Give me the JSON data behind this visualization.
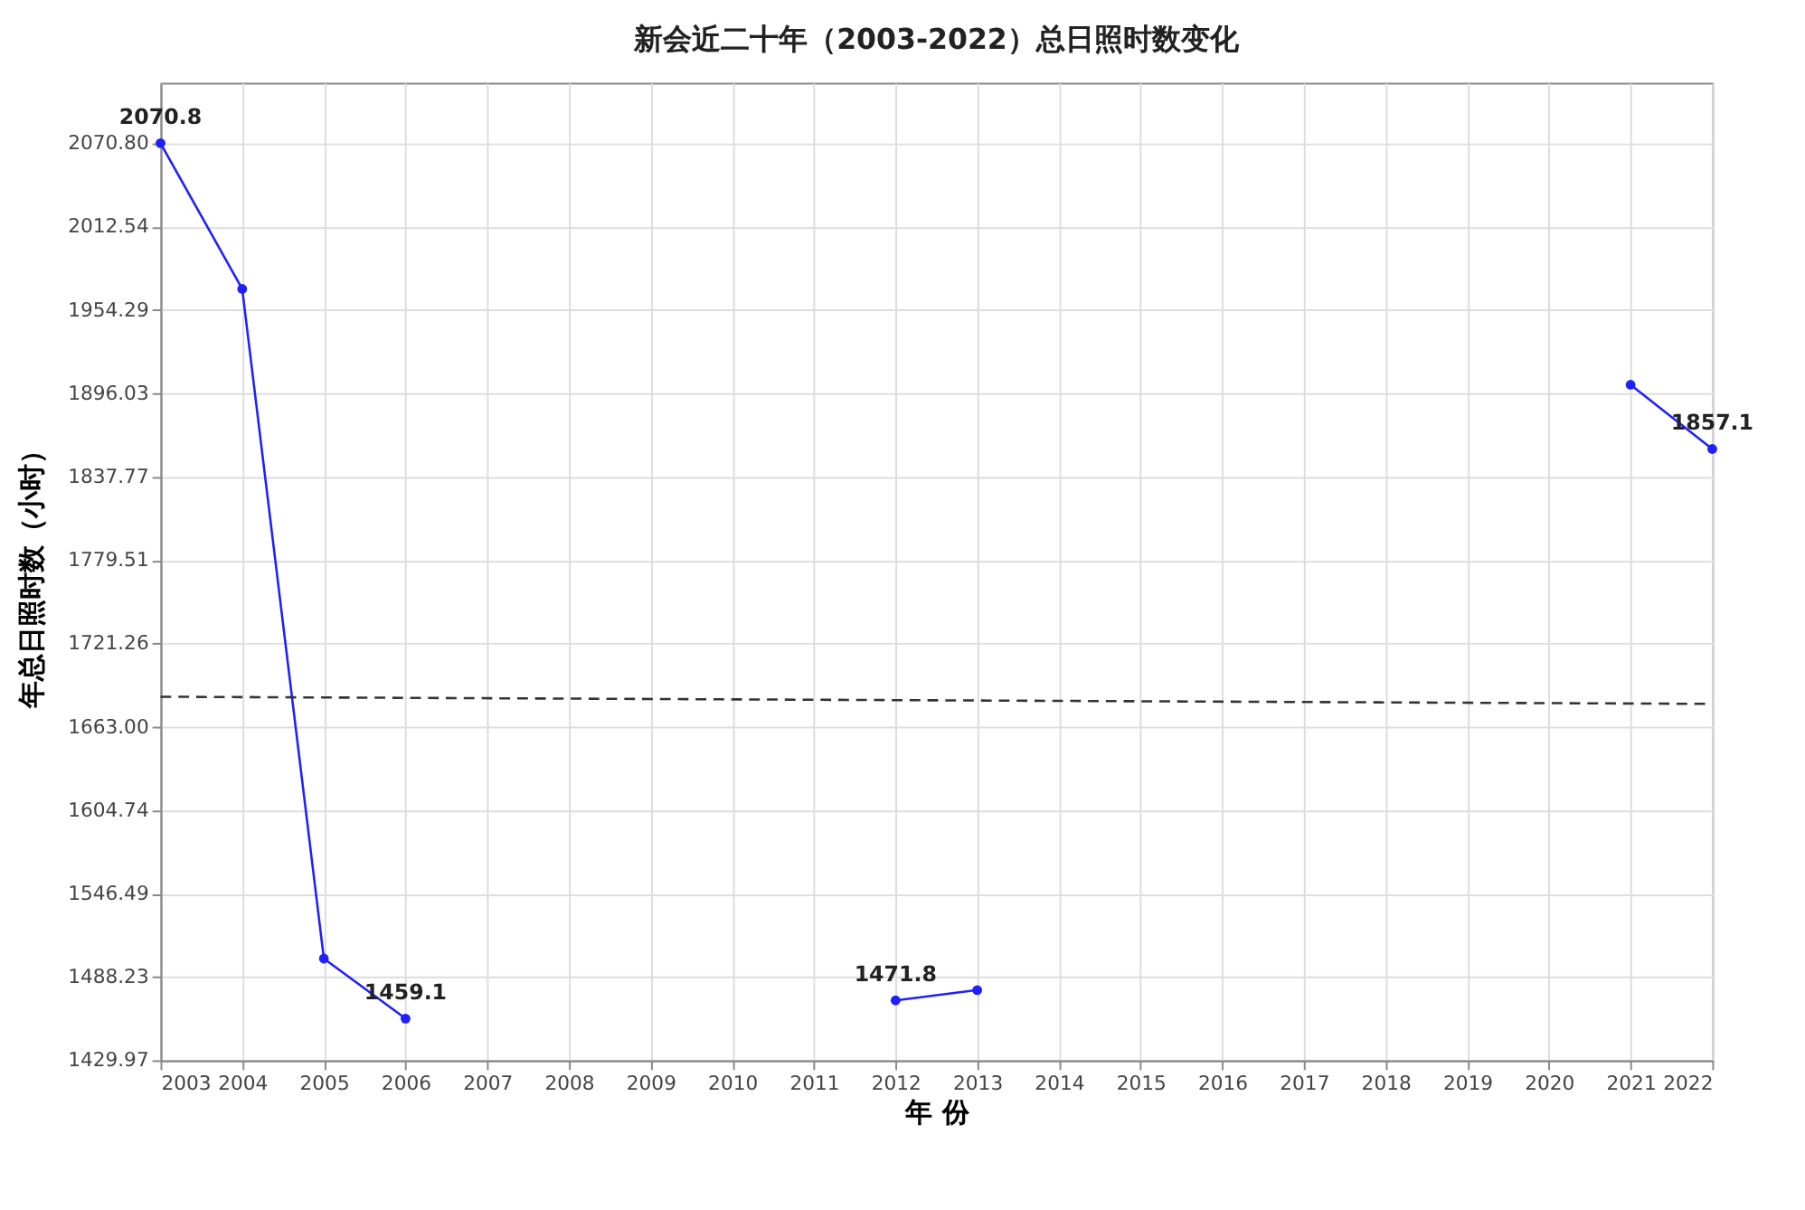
{
  "chart_data": {
    "type": "line",
    "title": "新会近二十年（2003-2022）总日照时数变化",
    "xlabel": "年 份",
    "ylabel": "年总日照时数（小时）",
    "x": [
      2003,
      2004,
      2005,
      2006,
      2007,
      2008,
      2009,
      2010,
      2011,
      2012,
      2013,
      2014,
      2015,
      2016,
      2017,
      2018,
      2019,
      2020,
      2021,
      2022
    ],
    "series": [
      {
        "color": "#1f1fff",
        "marker": "circle",
        "line_style": "solid",
        "values": [
          2070.8,
          1969,
          1501,
          1459.1,
          null,
          null,
          null,
          null,
          null,
          1471.8,
          1479,
          null,
          null,
          null,
          null,
          null,
          null,
          null,
          1902,
          1857.1
        ],
        "value_labels": [
          "2070.8",
          null,
          null,
          "1459.1",
          null,
          null,
          null,
          null,
          null,
          "1471.8",
          null,
          null,
          null,
          null,
          null,
          null,
          null,
          null,
          null,
          "1857.1"
        ]
      },
      {
        "type": "line",
        "color": "#333333",
        "marker": "none",
        "line_style": "dashed",
        "x": [
          2003,
          2022
        ],
        "values": [
          1684,
          1679
        ]
      }
    ],
    "xlim": [
      2003,
      2022
    ],
    "xticks": [
      2003,
      2004,
      2005,
      2006,
      2007,
      2008,
      2009,
      2010,
      2011,
      2012,
      2013,
      2014,
      2015,
      2016,
      2017,
      2018,
      2019,
      2020,
      2021,
      2022
    ],
    "ylim": [
      1429.97,
      2113
    ],
    "yticks": [
      1429.97,
      1488.23,
      1546.49,
      1604.74,
      {
        "value": 1663,
        "label": "1663.00"
      },
      1721.26,
      1779.51,
      1837.77,
      1896.03,
      1954.29,
      2012.54,
      {
        "value": 2070.8,
        "label": "2070.80"
      }
    ],
    "grid": true
  }
}
